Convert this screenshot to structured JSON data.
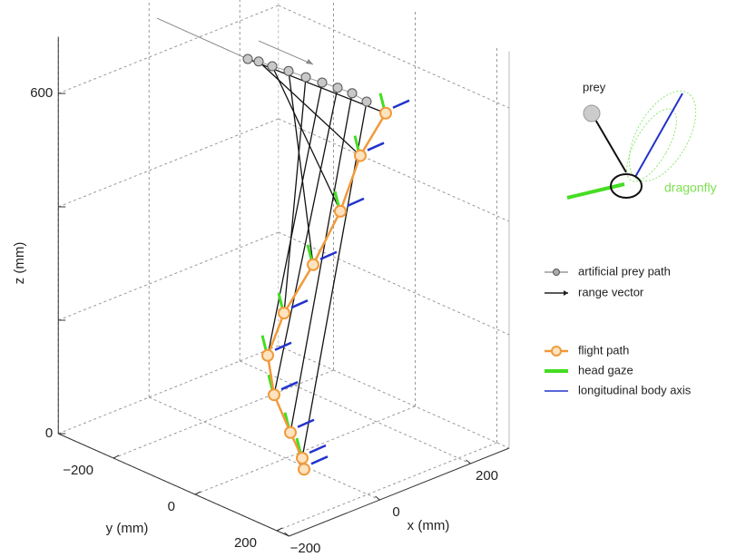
{
  "chart_data": {
    "type": "line3d",
    "xlabel": "x (mm)",
    "ylabel": "y (mm)",
    "zlabel": "z (mm)",
    "xlim": [
      -200,
      285
    ],
    "ylim": [
      -335,
      230
    ],
    "zlim": [
      0,
      700
    ],
    "xticks": [
      {
        "value": -200,
        "label": "−200"
      },
      0,
      200
    ],
    "yticks": [
      {
        "value": -200,
        "label": "−200"
      },
      0,
      200
    ],
    "zticks": [
      0,
      {
        "value": 200,
        "label": null
      },
      {
        "value": 400,
        "label": null
      },
      600
    ],
    "grid": true,
    "series": [
      {
        "name": "artificial prey path",
        "color": "#9a9a9a",
        "x": [
          6,
          30,
          60,
          96,
          134,
          170,
          204,
          236,
          268
        ],
        "y": [
          -100,
          -100,
          -100,
          -100,
          -100,
          -100,
          -100,
          -100,
          -100
        ],
        "z": [
          670,
          658,
          640,
          620,
          597,
          576,
          556,
          536,
          511
        ]
      },
      {
        "name": "flight path",
        "color": "#f09a3a",
        "x": [
          220,
          164,
          120,
          60,
          -4,
          -40,
          -26,
          10,
          -18,
          -14
        ],
        "y": [
          0,
          0,
          0,
          0,
          0,
          0,
          0,
          0,
          60,
          60
        ],
        "z": [
          538,
          481,
          397,
          322,
          257,
          194,
          120,
          42,
          25,
          4
        ]
      }
    ],
    "legend_items": [
      {
        "label": "range vector",
        "color": "#222222"
      },
      {
        "label": "head gaze",
        "color": "#44dd22"
      },
      {
        "label": "longitudinal body axis",
        "color": "#2233cc"
      }
    ],
    "inset_labels": [
      "prey",
      "dragonfly"
    ]
  }
}
